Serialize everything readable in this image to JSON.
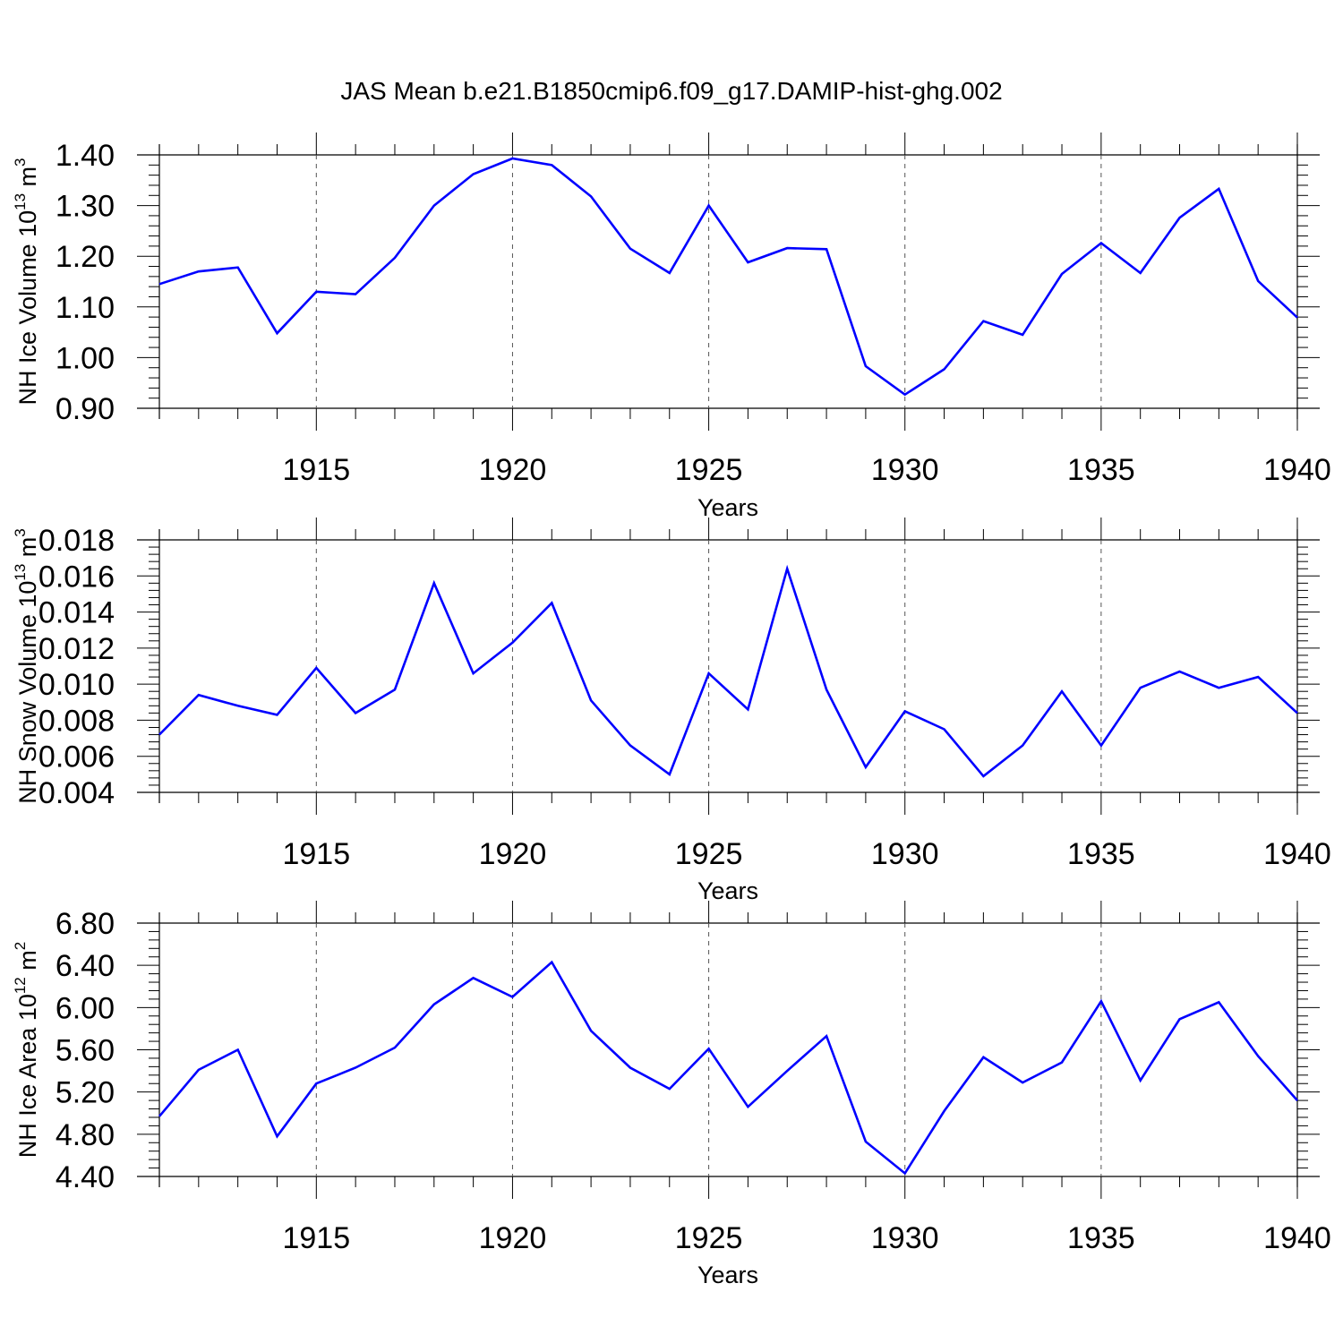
{
  "title": "JAS Mean b.e21.B1850cmip6.f09_g17.DAMIP-hist-ghg.002",
  "line_color": "#0000ff",
  "chart_data": [
    {
      "type": "line",
      "title": "JAS Mean b.e21.B1850cmip6.f09_g17.DAMIP-hist-ghg.002",
      "xlabel": "Years",
      "ylabel": {
        "text": "NH Ice Volume 10",
        "sup": "13",
        "unit": " m",
        "unit_sup": "3"
      },
      "xlim": [
        1911,
        1940
      ],
      "ylim": [
        0.9,
        1.4
      ],
      "x_ticks": [
        "1915",
        "1920",
        "1925",
        "1930",
        "1935",
        "1940"
      ],
      "y_ticks": [
        "0.90",
        "1.00",
        "1.10",
        "1.20",
        "1.30",
        "1.40"
      ],
      "x": [
        1911,
        1912,
        1913,
        1914,
        1915,
        1916,
        1917,
        1918,
        1919,
        1920,
        1921,
        1922,
        1923,
        1924,
        1925,
        1926,
        1927,
        1928,
        1929,
        1930,
        1931,
        1932,
        1933,
        1934,
        1935,
        1936,
        1937,
        1938,
        1939,
        1940
      ],
      "values": [
        1.145,
        1.17,
        1.178,
        1.048,
        1.13,
        1.125,
        1.197,
        1.3,
        1.362,
        1.393,
        1.38,
        1.318,
        1.215,
        1.167,
        1.3,
        1.188,
        1.216,
        1.214,
        0.983,
        0.927,
        0.977,
        1.072,
        1.045,
        1.165,
        1.226,
        1.167,
        1.276,
        1.333,
        1.151,
        1.079
      ],
      "grid": "vertical dashed at major x ticks"
    },
    {
      "type": "line",
      "xlabel": "Years",
      "ylabel": {
        "text": "NH Snow Volume 10",
        "sup": "13",
        "unit": " m",
        "unit_sup": "3"
      },
      "xlim": [
        1911,
        1940
      ],
      "ylim": [
        0.004,
        0.018
      ],
      "x_ticks": [
        "1915",
        "1920",
        "1925",
        "1930",
        "1935",
        "1940"
      ],
      "y_ticks": [
        "0.004",
        "0.006",
        "0.008",
        "0.010",
        "0.012",
        "0.014",
        "0.016",
        "0.018"
      ],
      "x": [
        1911,
        1912,
        1913,
        1914,
        1915,
        1916,
        1917,
        1918,
        1919,
        1920,
        1921,
        1922,
        1923,
        1924,
        1925,
        1926,
        1927,
        1928,
        1929,
        1930,
        1931,
        1932,
        1933,
        1934,
        1935,
        1936,
        1937,
        1938,
        1939,
        1940
      ],
      "values": [
        0.0072,
        0.0094,
        0.0088,
        0.0083,
        0.0109,
        0.0084,
        0.0097,
        0.0156,
        0.0106,
        0.0123,
        0.0145,
        0.0091,
        0.0066,
        0.005,
        0.0106,
        0.0086,
        0.0164,
        0.0097,
        0.0054,
        0.0085,
        0.0075,
        0.0049,
        0.0066,
        0.0096,
        0.0066,
        0.0098,
        0.0107,
        0.0098,
        0.0104,
        0.0084
      ],
      "grid": "vertical dashed at major x ticks"
    },
    {
      "type": "line",
      "xlabel": "Years",
      "ylabel": {
        "text": "NH Ice Area 10",
        "sup": "12",
        "unit": " m",
        "unit_sup": "2"
      },
      "xlim": [
        1911,
        1940
      ],
      "ylim": [
        4.4,
        6.8
      ],
      "x_ticks": [
        "1915",
        "1920",
        "1925",
        "1930",
        "1935",
        "1940"
      ],
      "y_ticks": [
        "4.40",
        "4.80",
        "5.20",
        "5.60",
        "6.00",
        "6.40",
        "6.80"
      ],
      "x": [
        1911,
        1912,
        1913,
        1914,
        1915,
        1916,
        1917,
        1918,
        1919,
        1920,
        1921,
        1922,
        1923,
        1924,
        1925,
        1926,
        1927,
        1928,
        1929,
        1930,
        1931,
        1932,
        1933,
        1934,
        1935,
        1936,
        1937,
        1938,
        1939,
        1940
      ],
      "values": [
        4.97,
        5.41,
        5.6,
        4.78,
        5.28,
        5.43,
        5.62,
        6.03,
        6.28,
        6.1,
        6.43,
        5.78,
        5.43,
        5.23,
        5.61,
        5.06,
        5.4,
        5.73,
        4.73,
        4.43,
        5.02,
        5.53,
        5.29,
        5.48,
        6.06,
        5.31,
        5.89,
        6.05,
        5.54,
        5.12
      ],
      "grid": "vertical dashed at major x ticks"
    }
  ]
}
